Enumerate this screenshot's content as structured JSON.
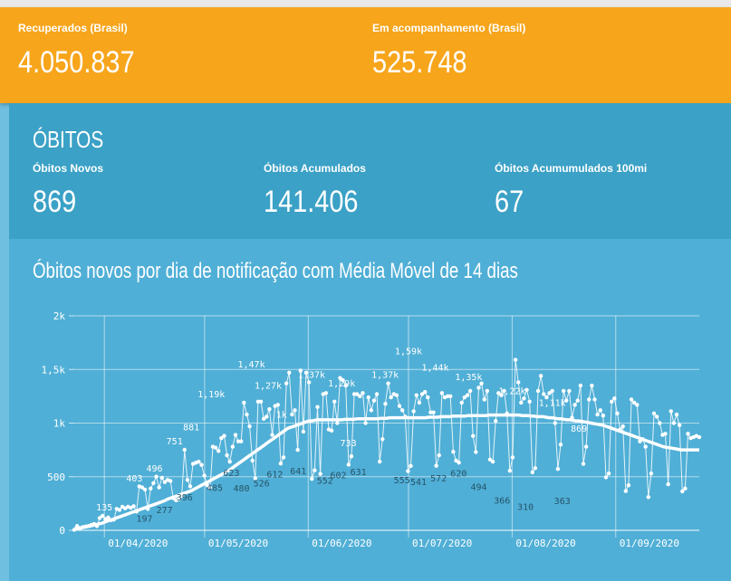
{
  "recuperados": {
    "label": "Recuperados (Brasil)",
    "value": "4.050.837"
  },
  "acompanhamento": {
    "label": "Em acompanhamento (Brasil)",
    "value": "525.748"
  },
  "obitos": {
    "title": "ÓBITOS",
    "novos": {
      "label": "Óbitos Novos",
      "value": "869"
    },
    "acumulados": {
      "label": "Óbitos Acumulados",
      "value": "141.406"
    },
    "acumulados100": {
      "label": "Óbitos Acumumulados 100mi",
      "value": "67"
    }
  },
  "colors": {
    "orange": "#f7a51b",
    "obitos_bg": "#3ba1c6",
    "chart_bg": "#50afd6",
    "line": "#ffffff"
  },
  "chart_data": {
    "type": "line",
    "title": "Óbitos novos por dia de notificação com Média Móvel de 14 dias",
    "y_tick_labels": [
      "0",
      "500",
      "1k",
      "1,5k",
      "2k"
    ],
    "y_ticks": [
      0,
      500,
      1000,
      1500,
      2000
    ],
    "ylim": [
      0,
      2000
    ],
    "x_tick_labels": [
      "01/04/2020",
      "01/05/2020",
      "01/06/2020",
      "01/07/2020",
      "01/08/2020",
      "01/09/2020"
    ],
    "x_tick_days": [
      9,
      39,
      70,
      100,
      131,
      162
    ],
    "x_range_days": [
      0,
      187
    ],
    "grid": true,
    "daily_deaths": [
      5,
      40,
      20,
      30,
      35,
      40,
      50,
      60,
      40,
      115,
      135,
      105,
      120,
      95,
      100,
      200,
      190,
      220,
      205,
      220,
      210,
      225,
      175,
      410,
      400,
      380,
      200,
      390,
      440,
      500,
      400,
      490,
      450,
      470,
      460,
      300,
      280,
      290,
      320,
      751,
      470,
      410,
      620,
      630,
      640,
      610,
      510,
      420,
      396,
      780,
      770,
      740,
      860,
      881,
      700,
      640,
      780,
      890,
      830,
      830,
      1190,
      1080,
      970,
      650,
      485,
      1200,
      1200,
      1040,
      1060,
      1130,
      890,
      1160,
      1170,
      623,
      680,
      1370,
      1470,
      1080,
      1120,
      750,
      1490,
      920,
      1470,
      1380,
      480,
      560,
      1150,
      526,
      1270,
      1280,
      940,
      930,
      1200,
      1000,
      1420,
      1400,
      1350,
      612,
      690,
      1270,
      1270,
      1250,
      1280,
      1000,
      1240,
      1120,
      1210,
      1270,
      641,
      850,
      1180,
      1370,
      1240,
      1270,
      1260,
      1160,
      1120,
      1060,
      552,
      600,
      1110,
      1260,
      1190,
      1270,
      1290,
      1240,
      1100,
      1100,
      602,
      700,
      1280,
      1240,
      1250,
      1250,
      733,
      650,
      631,
      1190,
      1240,
      1260,
      1300,
      880,
      730,
      1330,
      1370,
      1220,
      1300,
      660,
      640,
      1020,
      1280,
      1260,
      1300,
      1090,
      555,
      680,
      1590,
      1380,
      1190,
      1230,
      1310,
      1200,
      541,
      580,
      1300,
      1440,
      1270,
      1240,
      1280,
      1300,
      1000,
      572,
      800,
      1300,
      1210,
      1300,
      1050,
      1170,
      1210,
      1350,
      620,
      780,
      1220,
      1350,
      1220,
      1080,
      1120,
      1070,
      494,
      530,
      1200,
      1230,
      1090,
      940,
      970,
      366,
      420,
      1220,
      1190,
      1170,
      830,
      850,
      780,
      310,
      530,
      1090,
      1060,
      1000,
      890,
      900,
      430,
      1110,
      1000,
      1080,
      980,
      363,
      390,
      900,
      860,
      870,
      880,
      869
    ],
    "moving_average": [
      15,
      18,
      22,
      27,
      32,
      38,
      45,
      52,
      58,
      65,
      75,
      85,
      95,
      105,
      115,
      125,
      135,
      145,
      155,
      165,
      175,
      185,
      195,
      205,
      215,
      225,
      235,
      245,
      255,
      265,
      275,
      290,
      300,
      310,
      320,
      330,
      340,
      350,
      360,
      370,
      385,
      400,
      415,
      430,
      445,
      460,
      475,
      490,
      505,
      520,
      535,
      550,
      570,
      590,
      610,
      630,
      650,
      670,
      690,
      710,
      730,
      750,
      770,
      790,
      810,
      830,
      850,
      870,
      890,
      910,
      930,
      950,
      960,
      970,
      980,
      990,
      1000,
      1010,
      1020,
      1020,
      1025,
      1030,
      1030,
      1030,
      1030,
      1030,
      1030,
      1030,
      1030,
      1030,
      1035,
      1035,
      1035,
      1035,
      1040,
      1040,
      1040,
      1040,
      1040,
      1040,
      1040,
      1040,
      1045,
      1045,
      1045,
      1050,
      1050,
      1050,
      1050,
      1050,
      1050,
      1050,
      1050,
      1050,
      1050,
      1050,
      1050,
      1050,
      1055,
      1055,
      1055,
      1055,
      1060,
      1060,
      1060,
      1060,
      1065,
      1065,
      1065,
      1065,
      1065,
      1070,
      1070,
      1070,
      1070,
      1070,
      1070,
      1070,
      1075,
      1075,
      1075,
      1075,
      1075,
      1075,
      1075,
      1075,
      1075,
      1075,
      1075,
      1070,
      1070,
      1070,
      1065,
      1065,
      1060,
      1060,
      1060,
      1055,
      1050,
      1050,
      1045,
      1040,
      1040,
      1035,
      1030,
      1030,
      1025,
      1020,
      1020,
      1015,
      1010,
      1005,
      1000,
      995,
      990,
      985,
      980,
      970,
      960,
      950,
      940,
      930,
      920,
      910,
      900,
      890,
      880,
      870,
      860,
      850,
      840,
      830,
      820,
      810,
      800,
      790,
      780,
      775,
      770,
      765,
      760,
      755,
      750,
      750,
      750,
      750,
      750,
      750,
      750
    ],
    "data_labels": [
      {
        "day": 9,
        "value": 135,
        "text": "135",
        "pos": "above"
      },
      {
        "day": 18,
        "value": 403,
        "text": "403",
        "pos": "above"
      },
      {
        "day": 21,
        "value": 197,
        "text": "197",
        "pos": "below"
      },
      {
        "day": 24,
        "value": 496,
        "text": "496",
        "pos": "above"
      },
      {
        "day": 27,
        "value": 277,
        "text": "277",
        "pos": "below"
      },
      {
        "day": 30,
        "value": 751,
        "text": "751",
        "pos": "above"
      },
      {
        "day": 33,
        "value": 396,
        "text": "396",
        "pos": "below"
      },
      {
        "day": 35,
        "value": 881,
        "text": "881",
        "pos": "above"
      },
      {
        "day": 41,
        "value": 1190,
        "text": "1,19k",
        "pos": "above"
      },
      {
        "day": 42,
        "value": 485,
        "text": "485",
        "pos": "below"
      },
      {
        "day": 47,
        "value": 623,
        "text": "623",
        "pos": "below"
      },
      {
        "day": 53,
        "value": 1470,
        "text": "1,47k",
        "pos": "above"
      },
      {
        "day": 50,
        "value": 480,
        "text": "480",
        "pos": "below"
      },
      {
        "day": 56,
        "value": 526,
        "text": "526",
        "pos": "below"
      },
      {
        "day": 58,
        "value": 1270,
        "text": "1,27k",
        "pos": "above"
      },
      {
        "day": 62,
        "value": 1000,
        "text": "1k",
        "pos": "above"
      },
      {
        "day": 60,
        "value": 612,
        "text": "612",
        "pos": "below"
      },
      {
        "day": 67,
        "value": 641,
        "text": "641",
        "pos": "below"
      },
      {
        "day": 71,
        "value": 1370,
        "text": "1,37k",
        "pos": "above"
      },
      {
        "day": 75,
        "value": 552,
        "text": "552",
        "pos": "below"
      },
      {
        "day": 80,
        "value": 1290,
        "text": "1,29k",
        "pos": "above"
      },
      {
        "day": 79,
        "value": 602,
        "text": "602",
        "pos": "below"
      },
      {
        "day": 82,
        "value": 733,
        "text": "733",
        "pos": "above"
      },
      {
        "day": 85,
        "value": 631,
        "text": "631",
        "pos": "below"
      },
      {
        "day": 93,
        "value": 1370,
        "text": "1,37k",
        "pos": "above"
      },
      {
        "day": 98,
        "value": 555,
        "text": "555",
        "pos": "below"
      },
      {
        "day": 100,
        "value": 1590,
        "text": "1,59k",
        "pos": "above"
      },
      {
        "day": 103,
        "value": 541,
        "text": "541",
        "pos": "below"
      },
      {
        "day": 108,
        "value": 1440,
        "text": "1,44k",
        "pos": "above"
      },
      {
        "day": 109,
        "value": 572,
        "text": "572",
        "pos": "below"
      },
      {
        "day": 115,
        "value": 620,
        "text": "620",
        "pos": "below"
      },
      {
        "day": 118,
        "value": 1350,
        "text": "1,35k",
        "pos": "above"
      },
      {
        "day": 121,
        "value": 494,
        "text": "494",
        "pos": "below"
      },
      {
        "day": 128,
        "value": 366,
        "text": "366",
        "pos": "below"
      },
      {
        "day": 131,
        "value": 1220,
        "text": "1,22k",
        "pos": "above"
      },
      {
        "day": 135,
        "value": 310,
        "text": "310",
        "pos": "below"
      },
      {
        "day": 143,
        "value": 1110,
        "text": "1,11k",
        "pos": "above"
      },
      {
        "day": 146,
        "value": 363,
        "text": "363",
        "pos": "below"
      },
      {
        "day": 151,
        "value": 869,
        "text": "869",
        "pos": "above"
      }
    ]
  }
}
